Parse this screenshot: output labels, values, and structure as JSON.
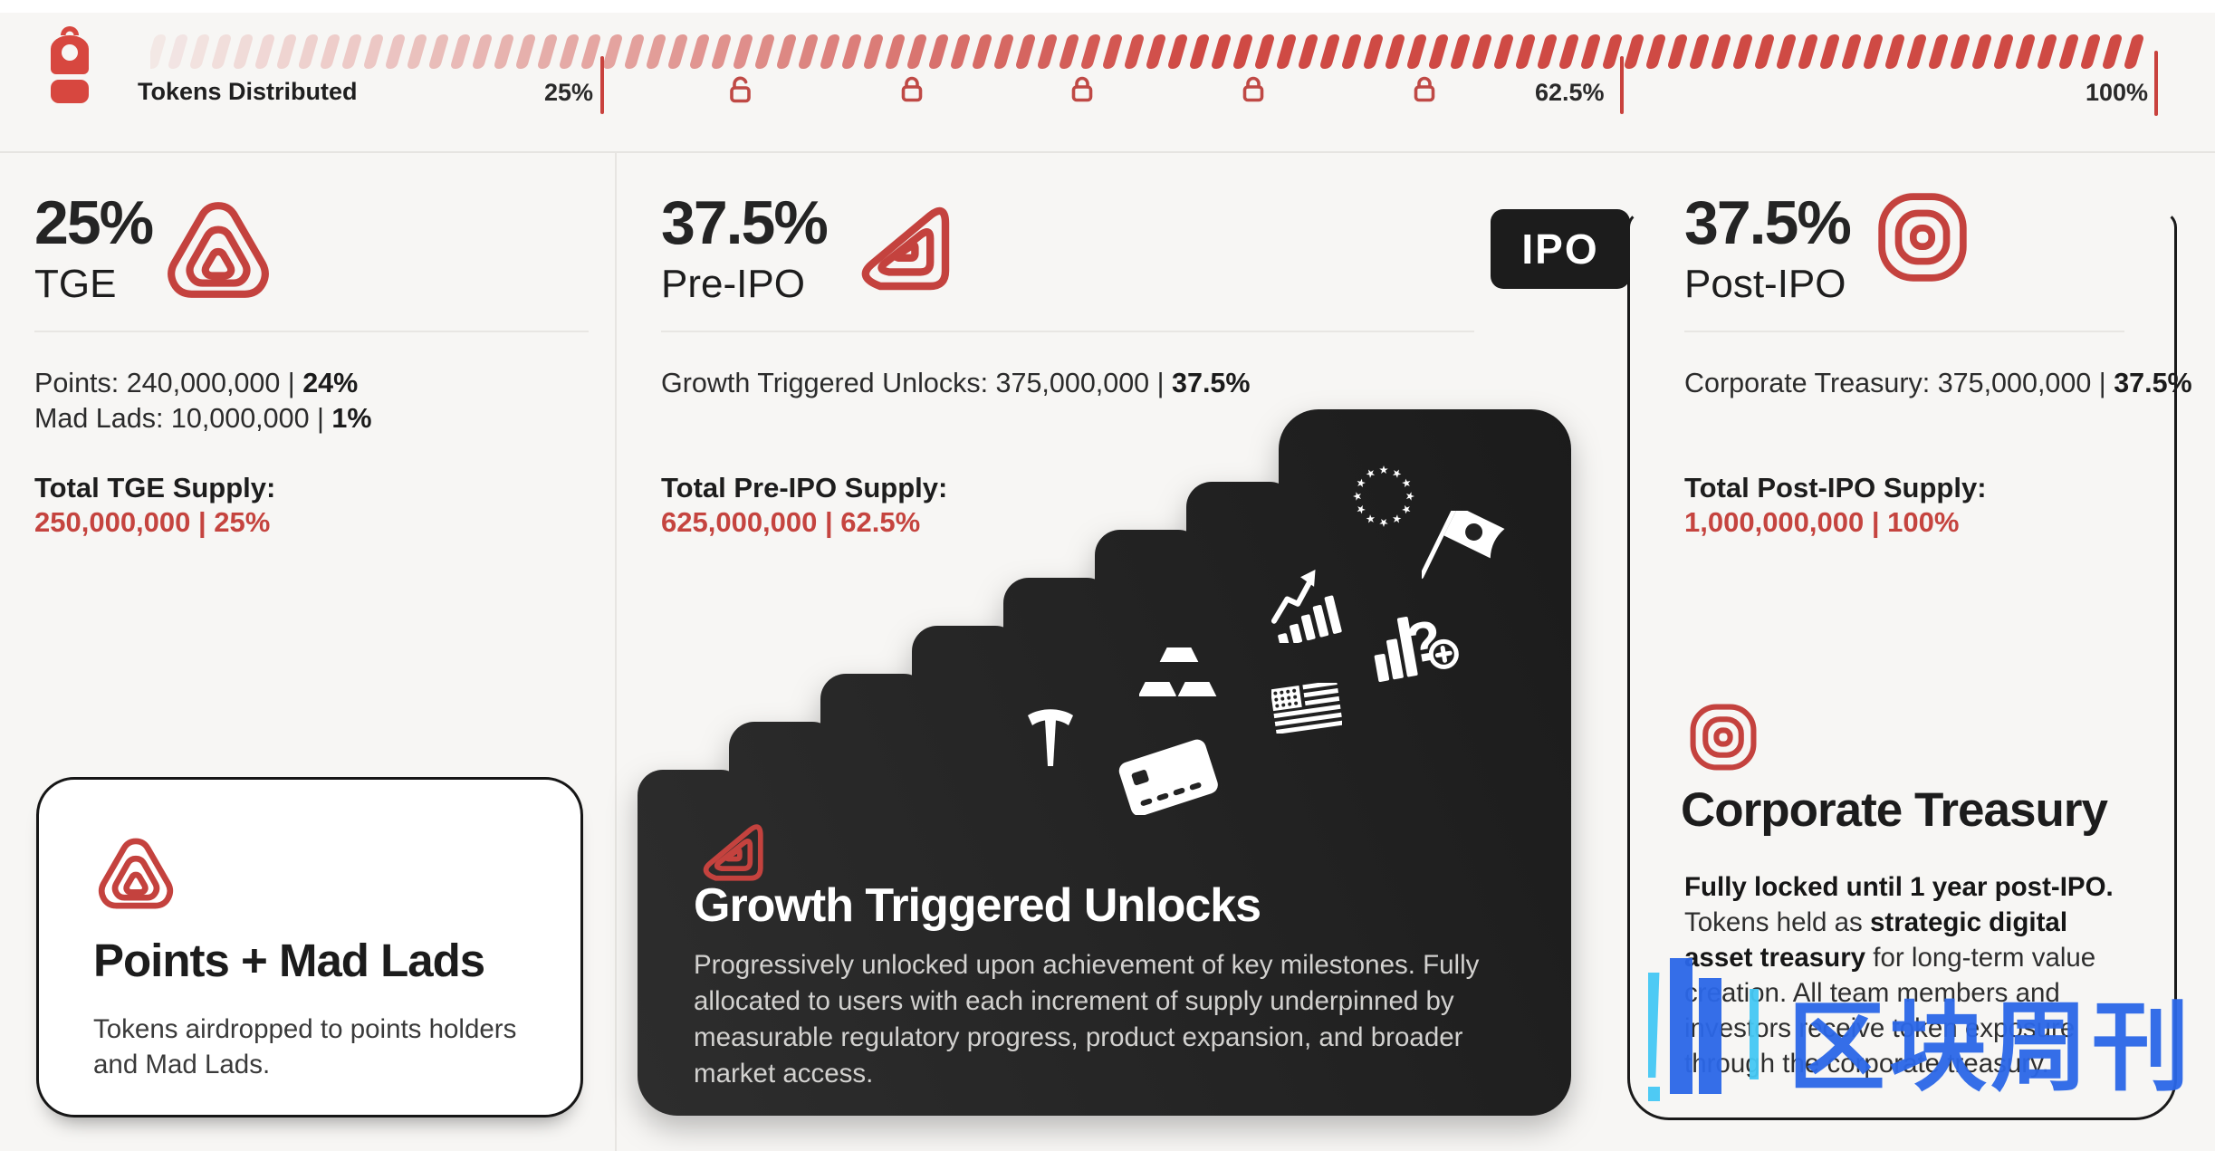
{
  "colors": {
    "brand_red": "#c5443f",
    "dash_red": "#cf4a44",
    "dark_card": "#1c1c1c",
    "watermark_blue": "#2b67e8",
    "watermark_cyan": "#45c8f5"
  },
  "topbar": {
    "title": "Tokens Distributed",
    "markers": [
      {
        "label": "25%"
      },
      {
        "label": "62.5%"
      },
      {
        "label": "100%"
      }
    ],
    "locks": [
      "unlocked",
      "locked",
      "locked",
      "locked",
      "locked"
    ]
  },
  "sections": {
    "tge": {
      "pct": "25%",
      "name": "TGE",
      "row1_text": "Points: 240,000,000 | ",
      "row1_pct": "24%",
      "row2_text": "Mad Lads: 10,000,000 | ",
      "row2_pct": "1%",
      "total_label": "Total TGE Supply:",
      "total_value": "250,000,000 | 25%",
      "card_title": "Points + Mad Lads",
      "card_body": "Tokens airdropped to points holders and Mad Lads."
    },
    "pre_ipo": {
      "pct": "37.5%",
      "name": "Pre-IPO",
      "badge": "IPO",
      "row_text": "Growth Triggered Unlocks: 375,000,000 | ",
      "row_pct": "37.5%",
      "total_label": "Total Pre-IPO Supply:",
      "total_value": "625,000,000 | 62.5%",
      "card_title": "Growth Triggered Unlocks",
      "card_body": "Progressively unlocked upon achievement of key milestones. Fully allocated to users with each increment of supply underpinned by measurable regulatory progress, product expansion, and broader market access."
    },
    "post_ipo": {
      "pct": "37.5%",
      "name": "Post-IPO",
      "row_text": "Corporate Treasury: 375,000,000 | ",
      "row_pct": "37.5%",
      "total_label": "Total Post-IPO Supply:",
      "total_value": "1,000,000,000 | 100%",
      "title": "Corporate Treasury",
      "body_bold1": "Fully locked until 1 year post-IPO.",
      "body_seg1": "Tokens held as ",
      "body_bold2": "strategic digital asset treasury",
      "body_seg2": " for long-term value creation. All team members and investors receive token exposure through the corporate treasury."
    }
  },
  "watermark": {
    "text": "区块周刊"
  }
}
